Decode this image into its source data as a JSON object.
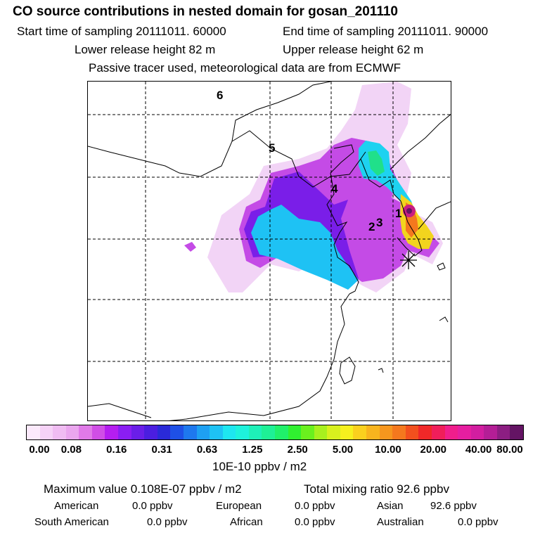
{
  "header": {
    "title": "CO  source contributions in nested domain for gosan_201110",
    "start": "Start time of sampling 20111011. 60000",
    "end": "End time of sampling 20111011. 90000",
    "lower": "Lower release height   82 m",
    "upper": "Upper release height   62 m",
    "tracer": "Passive tracer used, meteorological data are from ECMWF"
  },
  "map": {
    "region_labels": [
      "6",
      "5",
      "4",
      "1",
      "2",
      "3"
    ],
    "receptor_marker": "asterisk-icon"
  },
  "colorbar": {
    "ticks": [
      "0.00",
      "0.08",
      "0.16",
      "0.31",
      "0.63",
      "1.25",
      "2.50",
      "5.00",
      "10.00",
      "20.00",
      "40.00",
      "80.00"
    ],
    "colors": [
      "#fbe9fb",
      "#f6d2f7",
      "#f0bcf2",
      "#eaa6ee",
      "#e07ae8",
      "#d04ee6",
      "#b51ef0",
      "#8a1ef2",
      "#6a1ee8",
      "#4b1ee0",
      "#2a2ad8",
      "#1e50e6",
      "#1e78ee",
      "#1ea0f2",
      "#1ec2f4",
      "#1ee6f0",
      "#1ef2dc",
      "#1ef0b8",
      "#1ef096",
      "#20f06a",
      "#30f030",
      "#6af01e",
      "#a8f01e",
      "#d8f01e",
      "#f6f01e",
      "#fad01e",
      "#f8b41e",
      "#f6961e",
      "#f4781e",
      "#f2501e",
      "#f02828",
      "#f01e5a",
      "#f01e8c",
      "#e61ea0",
      "#d21ea0",
      "#b41e96",
      "#8c1e82",
      "#641464"
    ],
    "unit": "10E-10 ppbv / m2"
  },
  "summary": {
    "maximum": "Maximum value  0.108E-07 ppbv / m2",
    "total": "Total mixing ratio       92.6 ppbv",
    "regions": [
      {
        "name": "American",
        "value": "0.0 ppbv"
      },
      {
        "name": "European",
        "value": "0.0 ppbv"
      },
      {
        "name": "Asian",
        "value": "92.6 ppbv"
      },
      {
        "name": "South American",
        "value": "0.0 ppbv"
      },
      {
        "name": "African",
        "value": "0.0 ppbv"
      },
      {
        "name": "Australian",
        "value": "0.0 ppbv"
      }
    ]
  }
}
